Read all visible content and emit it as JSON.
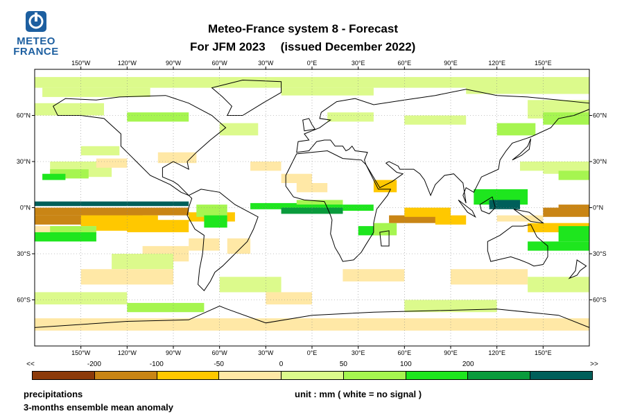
{
  "logo": {
    "line1": "METEO",
    "line2": "FRANCE",
    "brand_color": "#1d5fa0"
  },
  "title": {
    "line1": "Meteo-France system 8  -  Forecast",
    "line2_left": "For JFM 2023",
    "line2_right": "(issued December 2022)"
  },
  "map": {
    "lon_labels": [
      "150°W",
      "120°W",
      "90°W",
      "60°W",
      "30°W",
      "0°E",
      "30°E",
      "60°E",
      "90°E",
      "120°E",
      "150°E"
    ],
    "lon_values": [
      -150,
      -120,
      -90,
      -60,
      -30,
      0,
      30,
      60,
      90,
      120,
      150
    ],
    "lat_labels": [
      "60°N",
      "30°N",
      "0°N",
      "30°S",
      "60°S"
    ],
    "lat_values": [
      60,
      30,
      0,
      -30,
      -60
    ],
    "lon_range": [
      -180,
      180
    ],
    "lat_range": [
      -90,
      90
    ],
    "gridlines": true,
    "land_outline_color": "#000000"
  },
  "colorbar": {
    "labels": [
      "<<",
      "-200",
      "-100",
      "-50",
      "0",
      "50",
      "100",
      "200",
      ">>"
    ],
    "colors": [
      "#8c3a0a",
      "#c98515",
      "#ffc800",
      "#ffe8a6",
      "#dcfa8c",
      "#a6f550",
      "#1ee61e",
      "#0a9b3c",
      "#005f5a"
    ]
  },
  "footer": {
    "variable": "precipitations",
    "description": "3-months ensemble mean anomaly",
    "unit": "unit : mm  ( white = no signal )"
  }
}
